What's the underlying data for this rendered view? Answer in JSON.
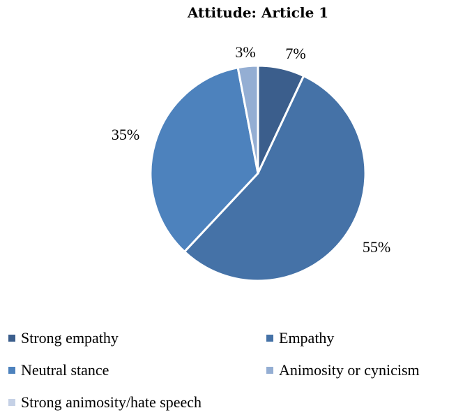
{
  "chart_data": {
    "type": "pie",
    "title": "Attitude: Article 1",
    "categories": [
      "Strong empathy",
      "Empathy",
      "Neutral stance",
      "Animosity or cynicism",
      "Strong animosity/hate speech"
    ],
    "values": [
      7,
      55,
      35,
      3,
      0
    ],
    "labels": [
      "7%",
      "55%",
      "35%",
      "3%",
      ""
    ],
    "colors": [
      "#3b5e8c",
      "#4572a7",
      "#4d82bd",
      "#94aed3",
      "#c5d1e6"
    ],
    "legend_position": "bottom"
  }
}
